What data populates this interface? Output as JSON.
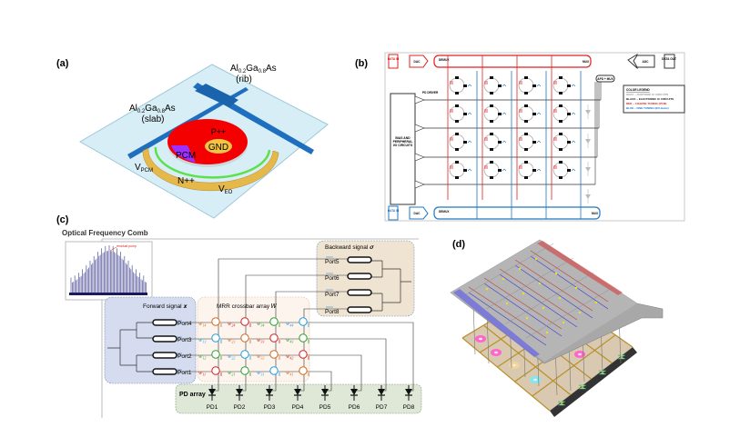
{
  "panels": {
    "a": {
      "label": "(a)",
      "rib": {
        "p1": "Al",
        "s1": "0.2",
        "p2": "Ga",
        "s2": "0.8",
        "p3": "As",
        "note": "(rib)"
      },
      "slab": {
        "p1": "Al",
        "s1": "0.2",
        "p2": "Ga",
        "s2": "0.8",
        "p3": "As",
        "note": "(slab)"
      },
      "p_doped": "P++",
      "gnd": "GND",
      "pcm": "PCM",
      "v_pcm": {
        "base": "V",
        "sub": "PCM"
      },
      "n_doped": "N++",
      "v_eo": {
        "base": "V",
        "sub": "EO"
      }
    },
    "b": {
      "label": "(b)",
      "data_in": "DATA IN",
      "dac": "DAC",
      "demux": "DEMUX",
      "mux": "MUX",
      "adc": "ADC",
      "data_out": "DATA OUT",
      "apd_mux": "APD + MUX",
      "pd_driver": "PD DRIVER",
      "bias": "BIAS AND PERIPHERAL I/O CIRCUITS",
      "legend": {
        "title": "COLOR LEGEND",
        "items": [
          {
            "text": "GRAY – PHOTONIC IC CIRCUITS",
            "color": "#9a9a9a"
          },
          {
            "text": "BLACK – ELECTRONIC IC CIRCUITS",
            "color": "#111111"
          },
          {
            "text": "RED – COARSE TUNING (PCM)",
            "color": "#e02020"
          },
          {
            "text": "BLUE – FINE TUNING (EO-GaAs)",
            "color": "#1f77c0"
          }
        ]
      }
    },
    "c": {
      "label": "(c)",
      "title": "Optical Frequency Comb",
      "inset_annotation": "residual pump",
      "forward": "Forward signal 𝒙",
      "mrr": "MRR crossbar array 𝑊",
      "backward": "Backward signal 𝝈",
      "pd_array": "PD array",
      "forward_ports": [
        "Port4",
        "Port3",
        "Port2",
        "Port1"
      ],
      "backward_ports": [
        "Port5",
        "Port6",
        "Port7",
        "Port8"
      ],
      "pds": [
        "PD1",
        "PD2",
        "PD3",
        "PD4",
        "PD5",
        "PD6",
        "PD7",
        "PD8"
      ],
      "weights": [
        [
          {
            "w": "w",
            "sub": "14",
            "color": "#d2691e"
          },
          {
            "w": "w",
            "sub": "24",
            "color": "#d42020"
          },
          {
            "w": "w",
            "sub": "34",
            "color": "#2ca02c"
          },
          {
            "w": "w",
            "sub": "44",
            "color": "#1f9fe0"
          }
        ],
        [
          {
            "w": "w",
            "sub": "13",
            "color": "#1f9fe0"
          },
          {
            "w": "w",
            "sub": "23",
            "color": "#d2691e"
          },
          {
            "w": "w",
            "sub": "33",
            "color": "#d42020"
          },
          {
            "w": "w",
            "sub": "43",
            "color": "#2ca02c"
          }
        ],
        [
          {
            "w": "w",
            "sub": "12",
            "color": "#2ca02c"
          },
          {
            "w": "w",
            "sub": "22",
            "color": "#1f9fe0"
          },
          {
            "w": "w",
            "sub": "32",
            "color": "#d2691e"
          },
          {
            "w": "w",
            "sub": "42",
            "color": "#d42020"
          }
        ],
        [
          {
            "w": "w",
            "sub": "11",
            "color": "#d42020"
          },
          {
            "w": "w",
            "sub": "21",
            "color": "#2ca02c"
          },
          {
            "w": "w",
            "sub": "31",
            "color": "#1f9fe0"
          },
          {
            "w": "w",
            "sub": "41",
            "color": "#d2691e"
          }
        ]
      ]
    },
    "d": {
      "label": "(d)"
    }
  }
}
